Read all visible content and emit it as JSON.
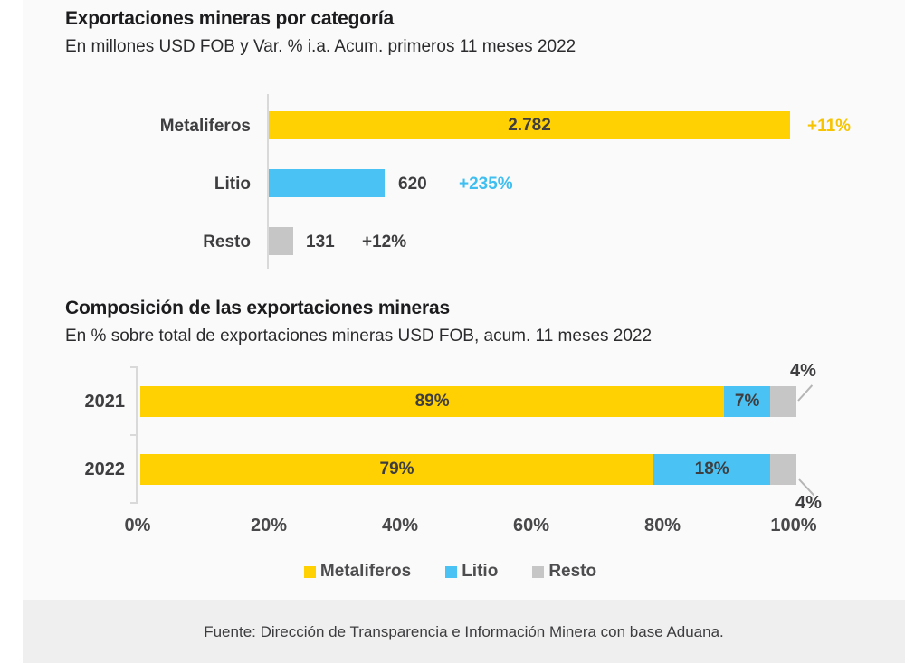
{
  "chart1": {
    "title": "Exportaciones mineras por categoría",
    "subtitle": "En millones USD FOB y Var. % i.a. Acum. primeros 11 meses 2022",
    "rows": [
      {
        "label": "Metaliferos",
        "value": "2.782",
        "variation": "+11%"
      },
      {
        "label": "Litio",
        "value": "620",
        "variation": "+235%"
      },
      {
        "label": "Resto",
        "value": "131",
        "variation": "+12%"
      }
    ]
  },
  "chart2": {
    "title": "Composición de las exportaciones mineras",
    "subtitle": "En % sobre total de exportaciones mineras USD FOB, acum. 11 meses 2022",
    "rows": [
      {
        "label": "2021",
        "metaliferos_pct": "89%",
        "litio_pct": "7%",
        "resto_pct": "4%"
      },
      {
        "label": "2022",
        "metaliferos_pct": "79%",
        "litio_pct": "18%",
        "resto_pct": "4%"
      }
    ],
    "ticks": [
      "0%",
      "20%",
      "40%",
      "60%",
      "80%",
      "100%"
    ]
  },
  "legend": {
    "items": [
      {
        "label": "Metaliferos",
        "color": "#ffd102"
      },
      {
        "label": "Litio",
        "color": "#4ac3f4"
      },
      {
        "label": "Resto",
        "color": "#c6c6c6"
      }
    ]
  },
  "footer": {
    "source": "Fuente: Dirección de Transparencia e Información Minera con base Aduana."
  },
  "colors": {
    "metaliferos": "#ffd102",
    "litio": "#4ac3f4",
    "resto": "#c6c6c6",
    "variation_metaliferos_text": "#f6c400",
    "variation_litio_text": "#3fbef0",
    "dark_text": "#3e3e40",
    "axis": "#d9d9d9",
    "content_background": "#fafafa",
    "footer_band": "#efeff0"
  },
  "chart_data": [
    {
      "type": "bar",
      "orientation": "horizontal",
      "title": "Exportaciones mineras por categoría",
      "subtitle": "En millones USD FOB y Var. % i.a. Acum. primeros 11 meses 2022",
      "categories": [
        "Metaliferos",
        "Litio",
        "Resto"
      ],
      "values": [
        2782,
        620,
        131
      ],
      "value_labels": [
        "2.782",
        "620",
        "131"
      ],
      "variation_labels": [
        "+11%",
        "+235%",
        "+12%"
      ],
      "unit": "millones USD FOB",
      "xlim": [
        0,
        2782
      ],
      "grid": false,
      "xmax": 2782
    },
    {
      "type": "bar",
      "stacked": true,
      "orientation": "horizontal",
      "title": "Composición de las exportaciones mineras",
      "subtitle": "En % sobre total de exportaciones mineras USD FOB, acum. 11 meses 2022",
      "categories": [
        "2021",
        "2022"
      ],
      "series": [
        {
          "name": "Metaliferos",
          "values": [
            89,
            79
          ]
        },
        {
          "name": "Litio",
          "values": [
            7,
            18
          ]
        },
        {
          "name": "Resto",
          "values": [
            4,
            4
          ]
        }
      ],
      "xlim": [
        0,
        100
      ],
      "tick_labels": [
        "0%",
        "20%",
        "40%",
        "60%",
        "80%",
        "100%"
      ],
      "grid": false,
      "legend_position": "bottom"
    }
  ]
}
